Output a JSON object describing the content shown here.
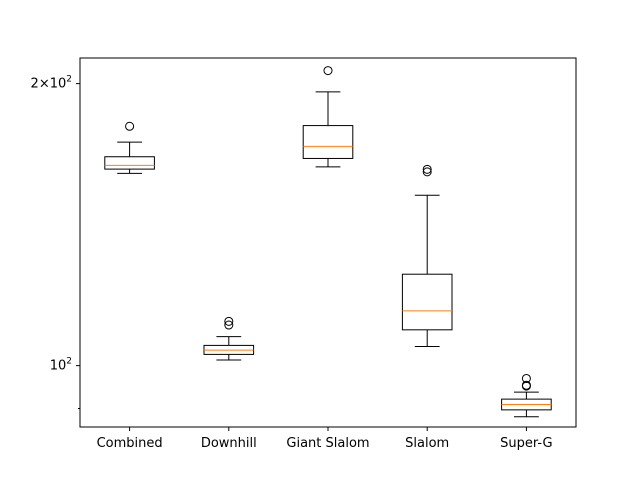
{
  "chart_data": {
    "type": "box",
    "categories": [
      "Combined",
      "Downhill",
      "Giant Slalom",
      "Slalom",
      "Super-G"
    ],
    "yscale": "log",
    "ylim": [
      86,
      213
    ],
    "yticks": [
      {
        "value": 100,
        "base": "10",
        "exp": "2"
      },
      {
        "value": 200,
        "coef": "2",
        "base": "10",
        "exp": "2"
      }
    ],
    "yminor_ticks": [
      90
    ],
    "grid": false,
    "boxes": [
      {
        "name": "Combined",
        "whisker_low": 160.4,
        "q1": 162.1,
        "median": 163.6,
        "q3": 167.1,
        "whisker_high": 173.2,
        "outliers": [
          180.1
        ]
      },
      {
        "name": "Downhill",
        "whisker_low": 101.4,
        "q1": 102.8,
        "median": 103.9,
        "q3": 105.1,
        "whisker_high": 107.4,
        "outliers": [
          110.5,
          111.5
        ]
      },
      {
        "name": "Giant Slalom",
        "whisker_low": 163.0,
        "q1": 166.4,
        "median": 171.4,
        "q3": 180.4,
        "whisker_high": 196.0,
        "outliers": [
          206.5
        ]
      },
      {
        "name": "Slalom",
        "whisker_low": 104.8,
        "q1": 109.2,
        "median": 114.4,
        "q3": 125.2,
        "whisker_high": 152.0,
        "outliers": [
          161.0,
          162.0
        ]
      },
      {
        "name": "Super-G",
        "whisker_low": 88.2,
        "q1": 89.7,
        "median": 90.9,
        "q3": 92.1,
        "whisker_high": 93.7,
        "outliers": [
          95.1,
          95.3,
          96.9
        ]
      }
    ],
    "colors": {
      "box": "#000000",
      "median": "#ff7f0e",
      "axes": "#000000"
    }
  }
}
